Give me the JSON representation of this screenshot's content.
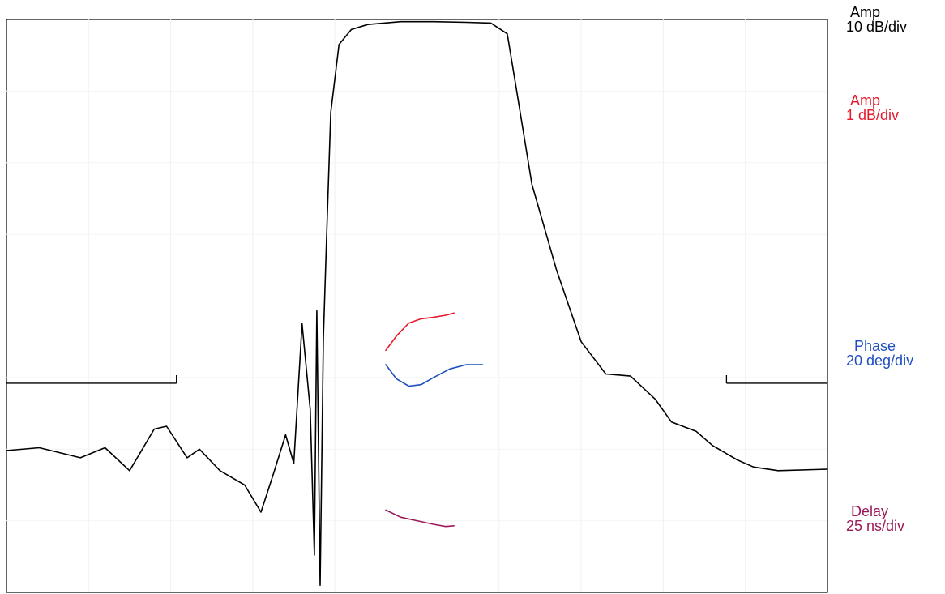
{
  "chart_data": {
    "type": "line",
    "title": "",
    "xlabel": "",
    "ylabel": "",
    "grid": true,
    "grid_divisions": {
      "x": 10,
      "y": 8
    },
    "xlim": [
      0,
      10
    ],
    "ylim": [
      0,
      8
    ],
    "scale_labels": [
      {
        "key": "amp10",
        "name": "Amp",
        "scale": "10 dB/div",
        "color": "#000000"
      },
      {
        "key": "amp1",
        "name": "Amp",
        "scale": "1 dB/div",
        "color": "#e8192c"
      },
      {
        "key": "phase",
        "name": "Phase",
        "scale": "20 deg/div",
        "color": "#1f4fbf"
      },
      {
        "key": "delay",
        "name": "Delay",
        "scale": "25 ns/div",
        "color": "#9b1b5a"
      }
    ],
    "series": [
      {
        "key": "amp10",
        "color": "#000000",
        "x": [
          0.0,
          0.4,
          0.9,
          1.2,
          1.5,
          1.8,
          1.95,
          2.2,
          2.35,
          2.6,
          2.9,
          3.1,
          3.25,
          3.4,
          3.5,
          3.6,
          3.7,
          3.75,
          3.78,
          3.82,
          3.86,
          3.9,
          3.95,
          4.05,
          4.2,
          4.4,
          4.8,
          5.2,
          5.6,
          5.9,
          6.1,
          6.2,
          6.4,
          6.7,
          7.0,
          7.3,
          7.6,
          7.9,
          8.1,
          8.4,
          8.6,
          8.9,
          9.1,
          9.4,
          10.0
        ],
        "y": [
          1.98,
          2.02,
          1.88,
          2.02,
          1.7,
          2.28,
          2.32,
          1.88,
          2.0,
          1.7,
          1.5,
          1.12,
          1.65,
          2.2,
          1.8,
          3.75,
          2.55,
          0.52,
          3.93,
          0.1,
          3.55,
          5.0,
          6.7,
          7.65,
          7.86,
          7.93,
          7.97,
          7.97,
          7.96,
          7.95,
          7.8,
          7.1,
          5.7,
          4.5,
          3.5,
          3.05,
          3.02,
          2.7,
          2.38,
          2.25,
          2.05,
          1.85,
          1.75,
          1.7,
          1.72
        ]
      },
      {
        "key": "amp1",
        "color": "#e8192c",
        "x": [
          4.62,
          4.75,
          4.9,
          5.05,
          5.2,
          5.35,
          5.45
        ],
        "y": [
          3.38,
          3.58,
          3.76,
          3.82,
          3.84,
          3.87,
          3.9
        ]
      },
      {
        "key": "phase",
        "color": "#1f4fbf",
        "x": [
          4.62,
          4.75,
          4.9,
          5.05,
          5.2,
          5.4,
          5.6,
          5.8
        ],
        "y": [
          3.18,
          2.98,
          2.88,
          2.9,
          3.0,
          3.12,
          3.18,
          3.18
        ]
      },
      {
        "key": "delay",
        "color": "#9b1b5a",
        "x": [
          4.62,
          4.8,
          5.0,
          5.2,
          5.35,
          5.45
        ],
        "y": [
          1.15,
          1.05,
          1.0,
          0.95,
          0.92,
          0.93
        ]
      }
    ],
    "marker_brackets": [
      {
        "x_start": 0.0,
        "x_end": 2.07,
        "y": 2.92,
        "tick": "left-end"
      },
      {
        "x_start": 8.77,
        "x_end": 10.0,
        "y": 2.92,
        "tick": "right-start"
      }
    ]
  }
}
